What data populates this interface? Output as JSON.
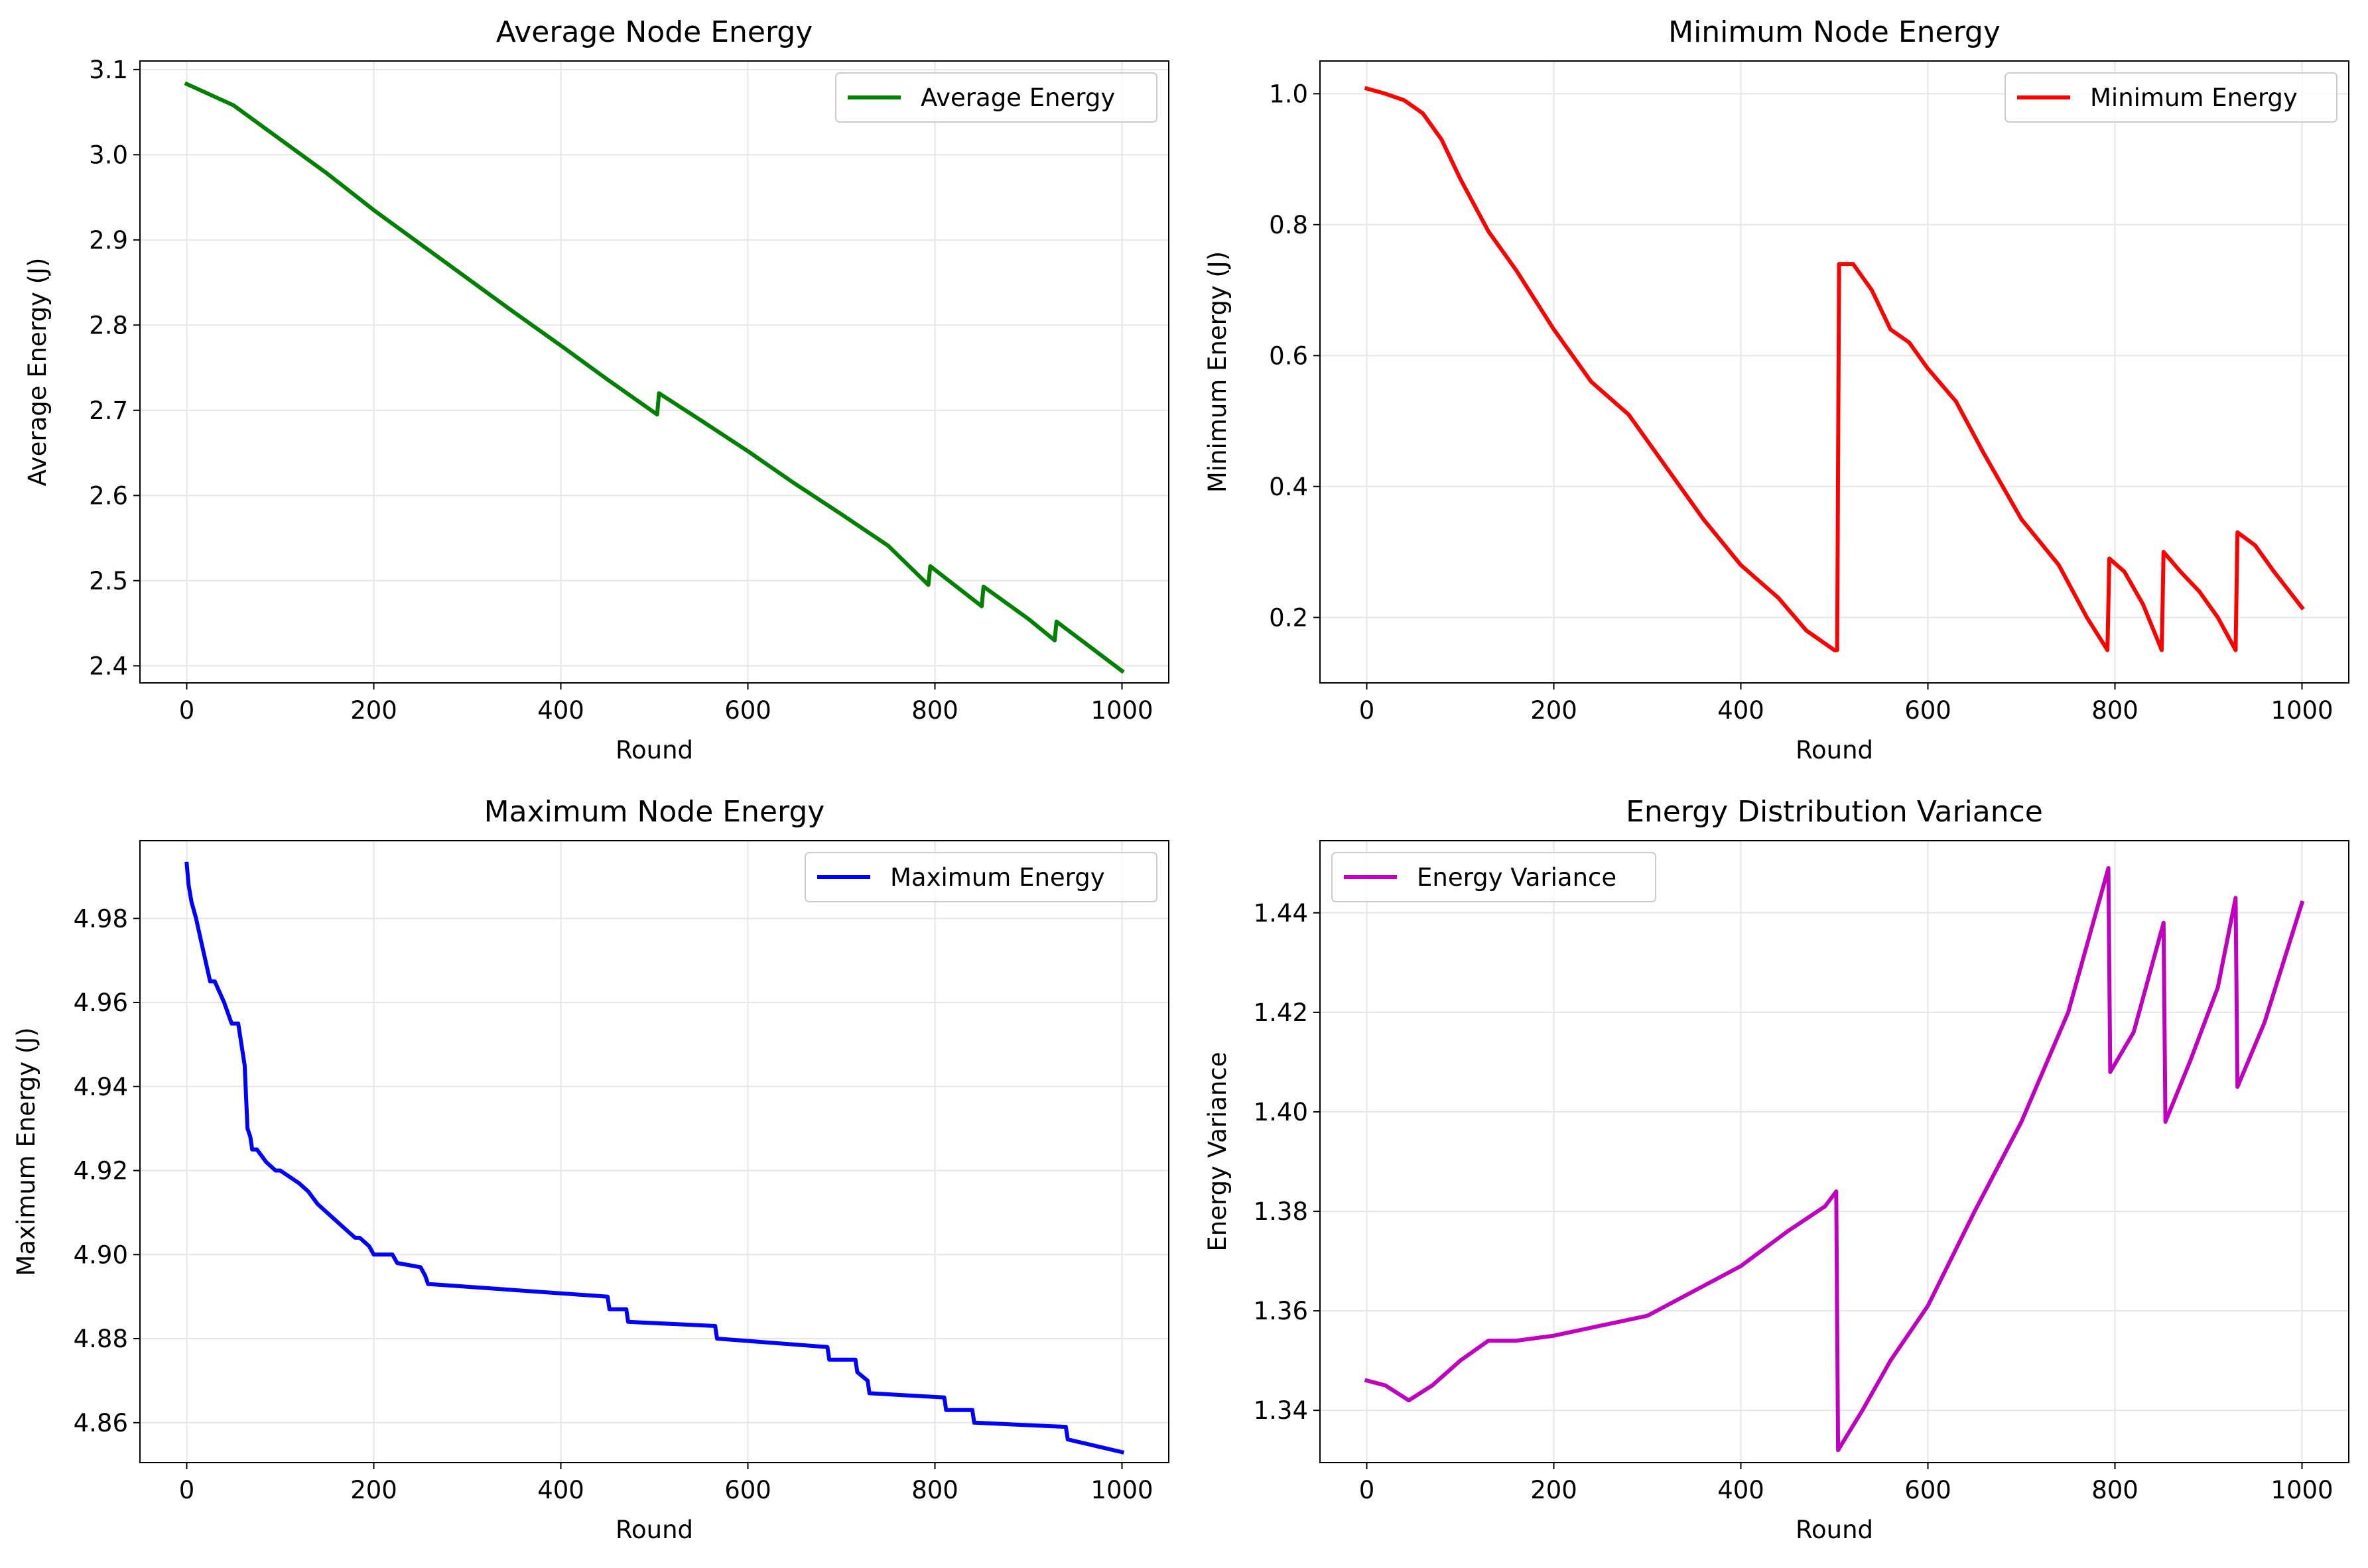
{
  "figure": {
    "panels": [
      {
        "title": "Average Node Energy",
        "xlabel": "Round",
        "ylabel": "Average Energy (J)"
      },
      {
        "title": "Minimum Node Energy",
        "xlabel": "Round",
        "ylabel": "Minimum Energy (J)"
      },
      {
        "title": "Maximum Node Energy",
        "xlabel": "Round",
        "ylabel": "Maximum Energy (J)"
      },
      {
        "title": "Energy Distribution Variance",
        "xlabel": "Round",
        "ylabel": "Energy Variance"
      }
    ]
  },
  "chart_data": [
    {
      "type": "line",
      "title": "Average Node Energy",
      "xlabel": "Round",
      "ylabel": "Average Energy (J)",
      "xlim": [
        -50,
        1050
      ],
      "ylim": [
        2.38,
        3.11
      ],
      "xticks": [
        0,
        200,
        400,
        600,
        800,
        1000
      ],
      "yticks": [
        2.4,
        2.5,
        2.6,
        2.7,
        2.8,
        2.9,
        3.0,
        3.1
      ],
      "ytick_labels": [
        "2.4",
        "2.5",
        "2.6",
        "2.7",
        "2.8",
        "2.9",
        "3.0",
        "3.1"
      ],
      "grid": true,
      "legend_position": "upper right",
      "series": [
        {
          "name": "Average Energy",
          "color": "#008000",
          "x": [
            0,
            50,
            100,
            150,
            200,
            250,
            300,
            350,
            400,
            450,
            503,
            505,
            550,
            600,
            650,
            700,
            750,
            793,
            795,
            850,
            852,
            900,
            928,
            930,
            1000
          ],
          "y": [
            3.083,
            3.058,
            3.018,
            2.978,
            2.935,
            2.895,
            2.855,
            2.815,
            2.776,
            2.736,
            2.695,
            2.72,
            2.688,
            2.652,
            2.614,
            2.578,
            2.541,
            2.495,
            2.517,
            2.47,
            2.493,
            2.455,
            2.43,
            2.452,
            2.394
          ]
        }
      ]
    },
    {
      "type": "line",
      "title": "Minimum Node Energy",
      "xlabel": "Round",
      "ylabel": "Minimum Energy (J)",
      "xlim": [
        -50,
        1050
      ],
      "ylim": [
        0.1,
        1.05
      ],
      "xticks": [
        0,
        200,
        400,
        600,
        800,
        1000
      ],
      "yticks": [
        0.2,
        0.4,
        0.6,
        0.8,
        1.0
      ],
      "ytick_labels": [
        "0.2",
        "0.4",
        "0.6",
        "0.8",
        "1.0"
      ],
      "grid": true,
      "legend_position": "upper right",
      "series": [
        {
          "name": "Minimum Energy",
          "color": "#ff0000",
          "x": [
            0,
            20,
            40,
            60,
            80,
            100,
            130,
            160,
            200,
            240,
            280,
            320,
            360,
            400,
            440,
            470,
            500,
            503,
            505,
            520,
            540,
            560,
            580,
            600,
            630,
            660,
            700,
            740,
            770,
            792,
            794,
            810,
            830,
            850,
            852,
            870,
            890,
            910,
            929,
            931,
            950,
            970,
            1000
          ],
          "y": [
            1.008,
            1.0,
            0.99,
            0.97,
            0.93,
            0.87,
            0.79,
            0.73,
            0.64,
            0.56,
            0.51,
            0.43,
            0.35,
            0.28,
            0.23,
            0.18,
            0.15,
            0.15,
            0.74,
            0.74,
            0.7,
            0.64,
            0.62,
            0.58,
            0.53,
            0.45,
            0.35,
            0.28,
            0.2,
            0.15,
            0.29,
            0.27,
            0.22,
            0.15,
            0.3,
            0.27,
            0.24,
            0.2,
            0.15,
            0.33,
            0.31,
            0.27,
            0.215
          ]
        }
      ]
    },
    {
      "type": "line",
      "title": "Maximum Node Energy",
      "xlabel": "Round",
      "ylabel": "Maximum Energy (J)",
      "xlim": [
        -50,
        1050
      ],
      "ylim": [
        4.8505,
        4.9985
      ],
      "xticks": [
        0,
        200,
        400,
        600,
        800,
        1000
      ],
      "yticks": [
        4.86,
        4.88,
        4.9,
        4.92,
        4.94,
        4.96,
        4.98
      ],
      "ytick_labels": [
        "4.86",
        "4.88",
        "4.90",
        "4.92",
        "4.94",
        "4.96",
        "4.98"
      ],
      "grid": true,
      "legend_position": "upper right",
      "series": [
        {
          "name": "Maximum Energy",
          "color": "#0000ff",
          "x": [
            0,
            2,
            5,
            10,
            15,
            20,
            25,
            30,
            40,
            48,
            55,
            62,
            65,
            68,
            70,
            75,
            85,
            95,
            100,
            120,
            130,
            140,
            150,
            160,
            170,
            180,
            185,
            195,
            200,
            220,
            225,
            250,
            255,
            258,
            450,
            452,
            470,
            472,
            565,
            567,
            685,
            687,
            715,
            717,
            728,
            730,
            810,
            812,
            840,
            842,
            940,
            942,
            1000
          ],
          "y": [
            4.993,
            4.988,
            4.984,
            4.98,
            4.975,
            4.97,
            4.965,
            4.965,
            4.96,
            4.955,
            4.955,
            4.945,
            4.93,
            4.928,
            4.925,
            4.925,
            4.922,
            4.92,
            4.92,
            4.917,
            4.915,
            4.912,
            4.91,
            4.908,
            4.906,
            4.904,
            4.904,
            4.902,
            4.9,
            4.9,
            4.898,
            4.897,
            4.895,
            4.893,
            4.89,
            4.887,
            4.887,
            4.884,
            4.883,
            4.88,
            4.878,
            4.875,
            4.875,
            4.872,
            4.87,
            4.867,
            4.866,
            4.863,
            4.863,
            4.86,
            4.859,
            4.856,
            4.853
          ]
        }
      ]
    },
    {
      "type": "line",
      "title": "Energy Distribution Variance",
      "xlabel": "Round",
      "ylabel": "Energy Variance",
      "xlim": [
        -50,
        1050
      ],
      "ylim": [
        1.3295,
        1.4545
      ],
      "xticks": [
        0,
        200,
        400,
        600,
        800,
        1000
      ],
      "yticks": [
        1.34,
        1.36,
        1.38,
        1.4,
        1.42,
        1.44
      ],
      "ytick_labels": [
        "1.34",
        "1.36",
        "1.38",
        "1.40",
        "1.42",
        "1.44"
      ],
      "grid": true,
      "legend_position": "upper left",
      "series": [
        {
          "name": "Energy Variance",
          "color": "#bf00bf",
          "x": [
            0,
            20,
            45,
            70,
            100,
            130,
            160,
            200,
            250,
            300,
            350,
            400,
            450,
            490,
            502,
            504,
            530,
            560,
            600,
            650,
            700,
            750,
            793,
            795,
            820,
            852,
            854,
            880,
            910,
            929,
            931,
            960,
            1000
          ],
          "y": [
            1.346,
            1.345,
            1.342,
            1.345,
            1.35,
            1.354,
            1.354,
            1.355,
            1.357,
            1.359,
            1.364,
            1.369,
            1.376,
            1.381,
            1.384,
            1.332,
            1.34,
            1.35,
            1.361,
            1.38,
            1.398,
            1.42,
            1.449,
            1.408,
            1.416,
            1.438,
            1.398,
            1.41,
            1.425,
            1.443,
            1.405,
            1.418,
            1.442
          ]
        }
      ]
    }
  ]
}
